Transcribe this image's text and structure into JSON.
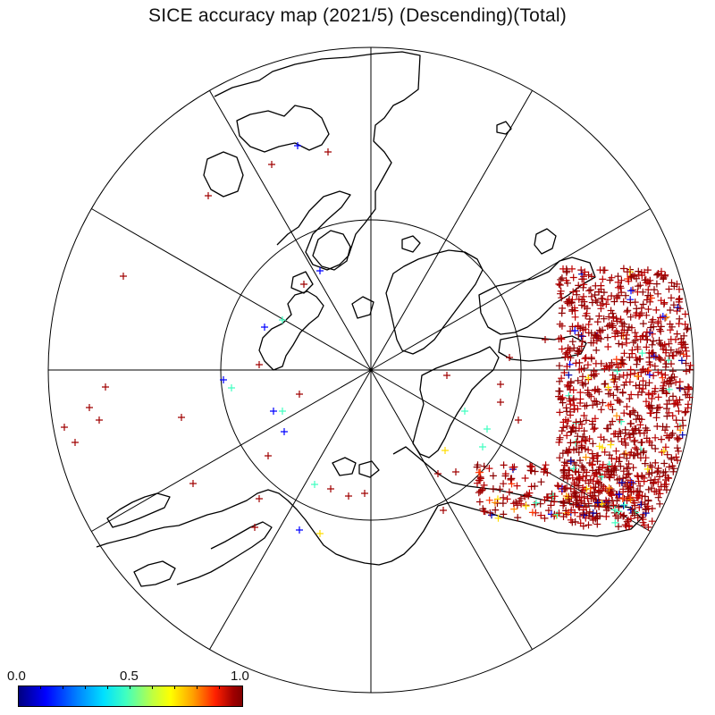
{
  "title": "SICE accuracy map (2021/5) (Descending)(Total)",
  "colorbar": {
    "min_label": "0.0",
    "mid_label": "0.5",
    "max_label": "1.0",
    "colormap": "jet",
    "stops": [
      "#000080",
      "#0000ff",
      "#00e0ff",
      "#c0ff40",
      "#ffff00",
      "#ffa000",
      "#ff2000",
      "#800000"
    ]
  },
  "map": {
    "projection": "north-polar-stereographic",
    "graticule": "latitude circles and 12 meridians",
    "marker_shape": "plus",
    "colors": {
      "coast": "#000000",
      "high": "#a00000",
      "low": "#0000ff",
      "mid": "#40ffc0",
      "yellow": "#ffdd00"
    }
  }
}
